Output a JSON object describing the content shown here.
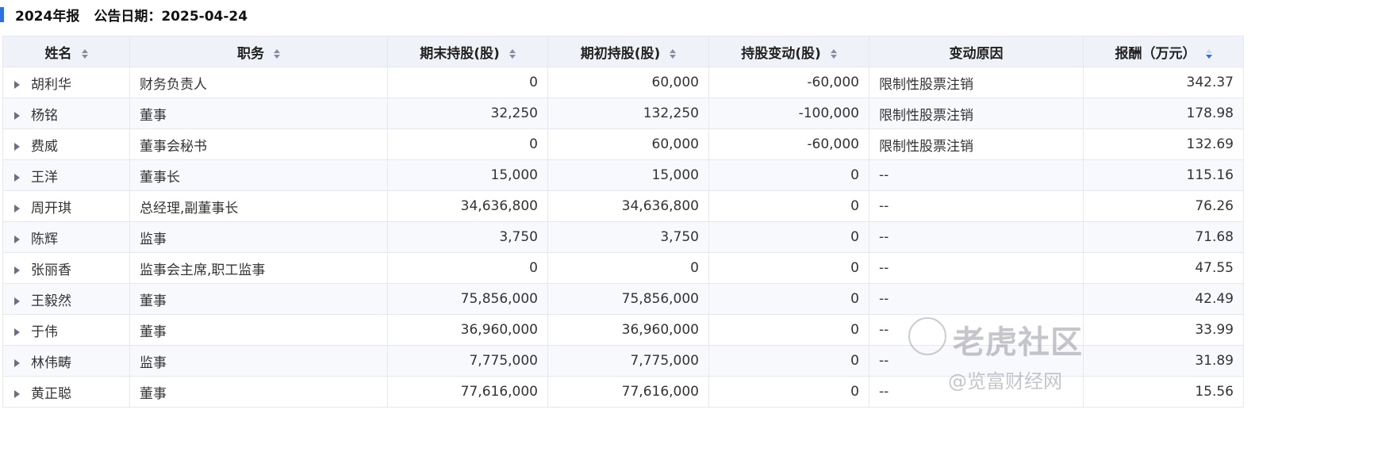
{
  "header": {
    "report": "2024年报",
    "date_label": "公告日期：2025-04-24"
  },
  "columns": [
    "姓名",
    "职务",
    "期末持股(股)",
    "期初持股(股)",
    "持股变动(股)",
    "变动原因",
    "报酬（万元）"
  ],
  "sort": {
    "active_column": "报酬（万元）",
    "direction": "descending",
    "accent": "#2f6fe4"
  },
  "rows": [
    [
      "胡利华",
      "财务负责人",
      "0",
      "60,000",
      "-60,000",
      "限制性股票注销",
      "342.37"
    ],
    [
      "杨铭",
      "董事",
      "32,250",
      "132,250",
      "-100,000",
      "限制性股票注销",
      "178.98"
    ],
    [
      "费威",
      "董事会秘书",
      "0",
      "60,000",
      "-60,000",
      "限制性股票注销",
      "132.69"
    ],
    [
      "王洋",
      "董事长",
      "15,000",
      "15,000",
      "0",
      "--",
      "115.16"
    ],
    [
      "周开琪",
      "总经理,副董事长",
      "34,636,800",
      "34,636,800",
      "0",
      "--",
      "76.26"
    ],
    [
      "陈辉",
      "监事",
      "3,750",
      "3,750",
      "0",
      "--",
      "71.68"
    ],
    [
      "张丽香",
      "监事会主席,职工监事",
      "0",
      "0",
      "0",
      "--",
      "47.55"
    ],
    [
      "王毅然",
      "董事",
      "75,856,000",
      "75,856,000",
      "0",
      "--",
      "42.49"
    ],
    [
      "于伟",
      "董事",
      "36,960,000",
      "36,960,000",
      "0",
      "--",
      "33.99"
    ],
    [
      "林伟畴",
      "监事",
      "7,775,000",
      "7,775,000",
      "0",
      "--",
      "31.89"
    ],
    [
      "黄正聪",
      "董事",
      "77,616,000",
      "77,616,000",
      "0",
      "--",
      "15.56"
    ]
  ],
  "watermark": {
    "brand": "老虎社区",
    "source": "@览富财经网"
  }
}
